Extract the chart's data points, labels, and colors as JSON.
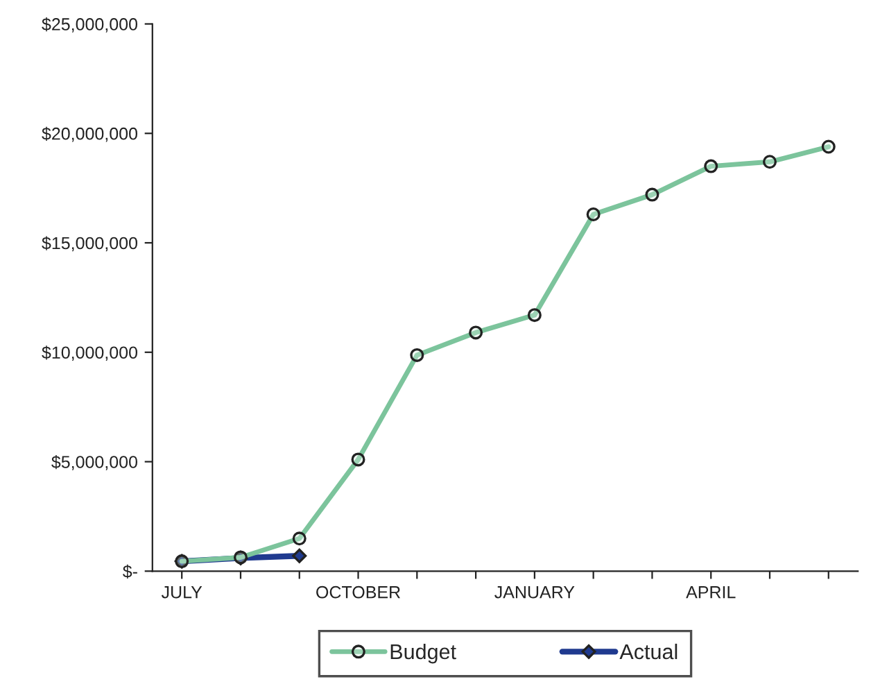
{
  "chart_data": {
    "type": "line",
    "categories": [
      "JULY",
      null,
      null,
      "OCTOBER",
      null,
      null,
      "JANUARY",
      null,
      null,
      "APRIL",
      null,
      null
    ],
    "series": [
      {
        "name": "Budget",
        "color": "#7cc49c",
        "marker": "circle",
        "values": [
          450000,
          630000,
          1490000,
          5100000,
          9870000,
          10900000,
          11700000,
          16300000,
          17200000,
          18500000,
          18700000,
          19390000
        ]
      },
      {
        "name": "Actual",
        "color": "#1f3a8f",
        "marker": "diamond",
        "values": [
          450000,
          600000,
          700000,
          null,
          null,
          null,
          null,
          null,
          null,
          null,
          null,
          null
        ]
      }
    ],
    "ylim": [
      0,
      25000000
    ],
    "yticks": [
      {
        "value": 0,
        "label": "$-"
      },
      {
        "value": 5000000,
        "label": "$5,000,000"
      },
      {
        "value": 10000000,
        "label": "$10,000,000"
      },
      {
        "value": 15000000,
        "label": "$15,000,000"
      },
      {
        "value": 20000000,
        "label": "$20,000,000"
      },
      {
        "value": 25000000,
        "label": "$25,000,000"
      }
    ],
    "grid": false,
    "legend": "bottom",
    "line_style": "solid"
  }
}
